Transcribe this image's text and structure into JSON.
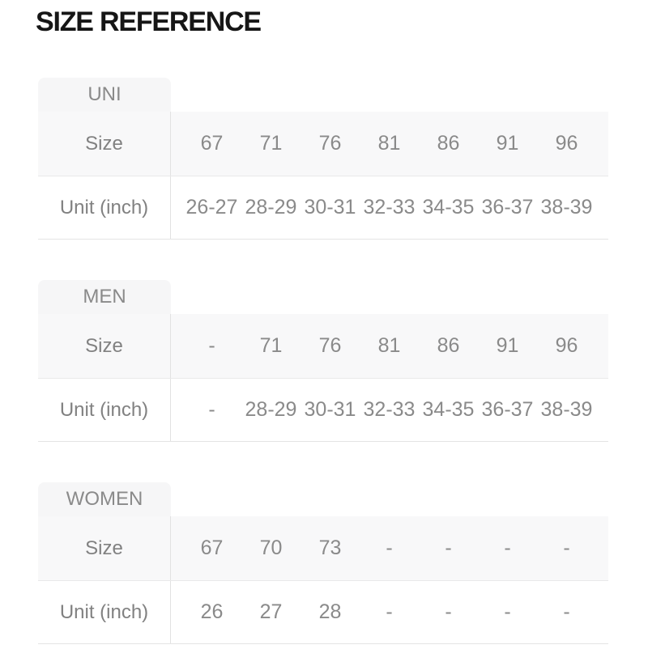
{
  "page": {
    "title": "SIZE REFERENCE"
  },
  "tables": [
    {
      "group": "UNI",
      "size_label": "Size",
      "unit_label": "Unit (inch)",
      "sizes": [
        "67",
        "71",
        "76",
        "81",
        "86",
        "91",
        "96"
      ],
      "units": [
        "26-27",
        "28-29",
        "30-31",
        "32-33",
        "34-35",
        "36-37",
        "38-39"
      ]
    },
    {
      "group": "MEN",
      "size_label": "Size",
      "unit_label": "Unit (inch)",
      "sizes": [
        "-",
        "71",
        "76",
        "81",
        "86",
        "91",
        "96"
      ],
      "units": [
        "-",
        "28-29",
        "30-31",
        "32-33",
        "34-35",
        "36-37",
        "38-39"
      ]
    },
    {
      "group": "WOMEN",
      "size_label": "Size",
      "unit_label": "Unit (inch)",
      "sizes": [
        "67",
        "70",
        "73",
        "-",
        "-",
        "-",
        "-"
      ],
      "units": [
        "26",
        "27",
        "28",
        "-",
        "-",
        "-",
        "-"
      ]
    }
  ]
}
